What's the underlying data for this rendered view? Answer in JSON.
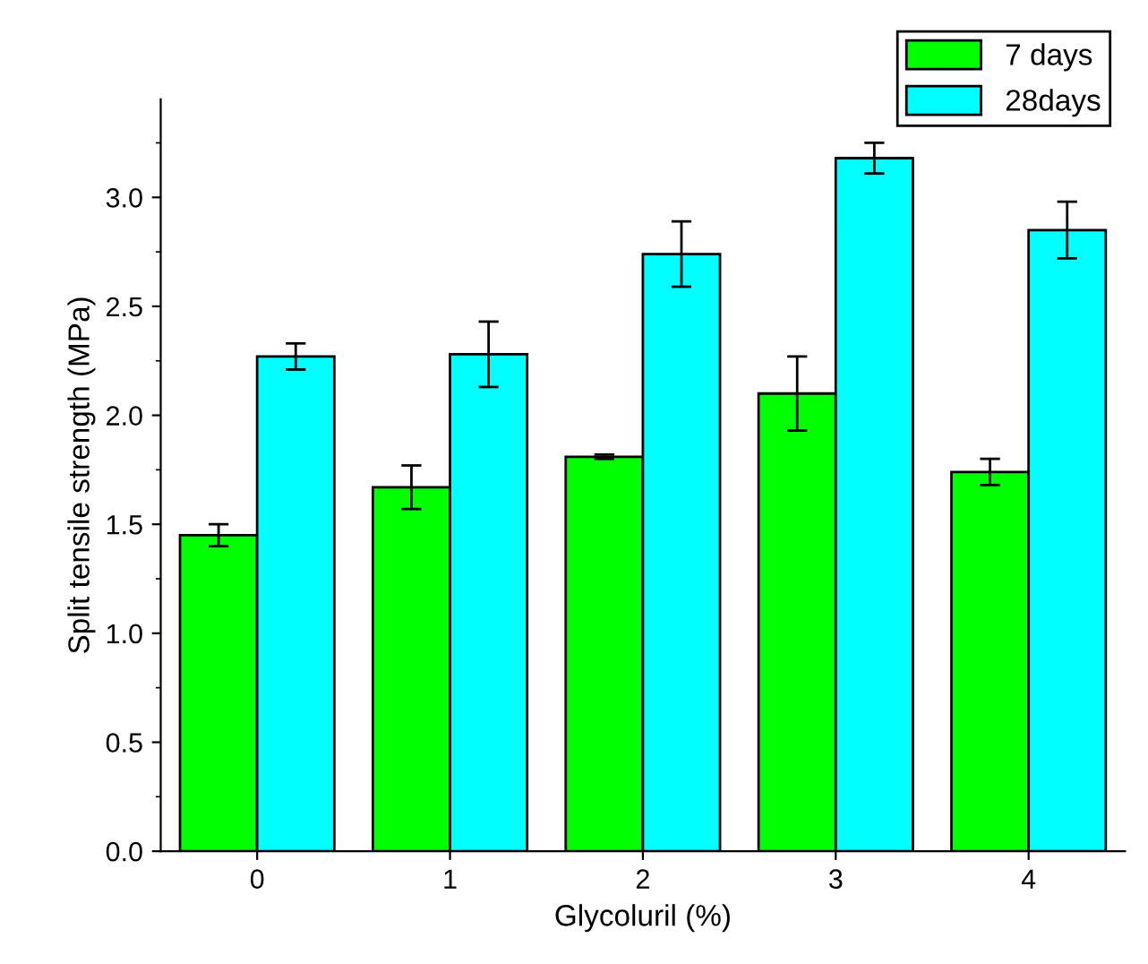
{
  "chart_data": {
    "type": "bar",
    "xlabel": "Glycoluril (%)",
    "ylabel": "Split tensile strength (MPa)",
    "categories": [
      "0",
      "1",
      "2",
      "3",
      "4"
    ],
    "series": [
      {
        "name": "7 days",
        "color": "#00ff00",
        "values": [
          1.45,
          1.67,
          1.81,
          2.1,
          1.74
        ],
        "errors": [
          0.05,
          0.1,
          0.01,
          0.17,
          0.06
        ]
      },
      {
        "name": "28days",
        "color": "#00ffff",
        "values": [
          2.27,
          2.28,
          2.74,
          3.18,
          2.85
        ],
        "errors": [
          0.06,
          0.15,
          0.15,
          0.07,
          0.13
        ]
      }
    ],
    "ylim": [
      0,
      3.45
    ],
    "yticks": [
      {
        "value": 0,
        "label": "0.0"
      },
      0.5,
      {
        "value": 1,
        "label": "1.0"
      },
      1.5,
      {
        "value": 2,
        "label": "2.0"
      },
      2.5,
      {
        "value": 3,
        "label": "3.0"
      }
    ],
    "grid": false,
    "legend": "top right"
  }
}
